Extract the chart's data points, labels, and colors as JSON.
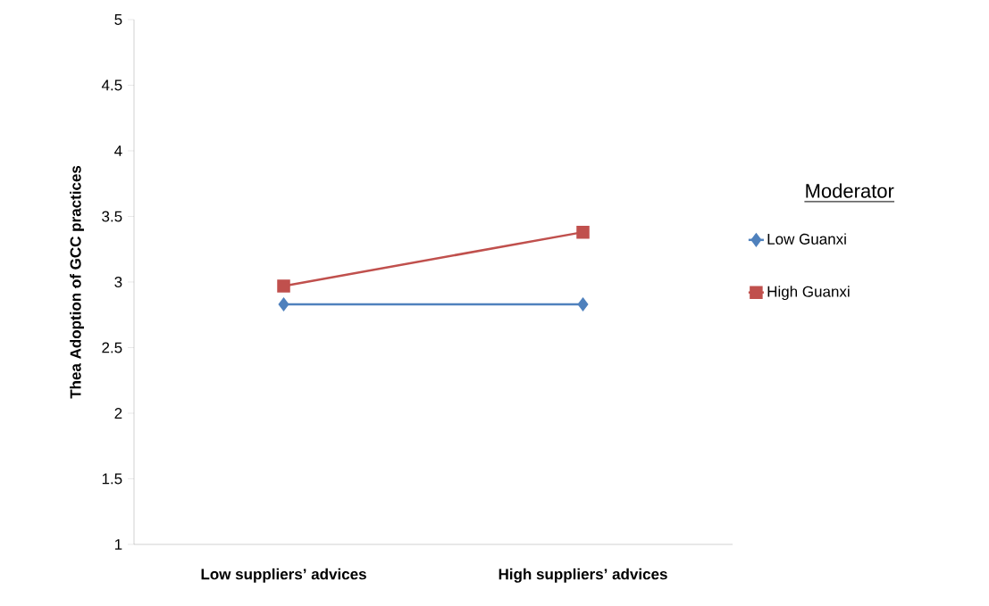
{
  "chart_data": {
    "type": "line",
    "ylabel": "Thea Adoption of GCC practices",
    "legend_title": "Moderator",
    "categories": [
      "Low suppliers’ advices",
      "High suppliers’ advices"
    ],
    "series": [
      {
        "name": "Low Guanxi",
        "color": "#4f81bd",
        "marker": "diamond",
        "values": [
          2.83,
          2.83
        ]
      },
      {
        "name": "High Guanxi",
        "color": "#c0504d",
        "marker": "square",
        "values": [
          2.97,
          3.38
        ]
      }
    ],
    "ylim": [
      1,
      5
    ],
    "yticks": [
      1,
      1.5,
      2,
      2.5,
      3,
      3.5,
      4,
      4.5,
      5
    ],
    "grid": false,
    "legend": "right"
  }
}
